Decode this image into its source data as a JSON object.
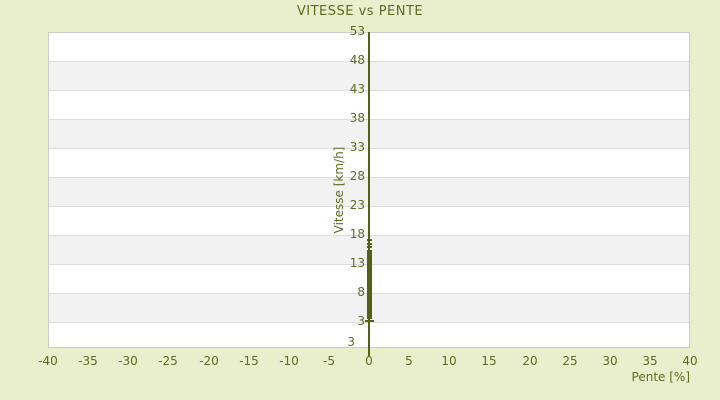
{
  "colors": {
    "background": "#e9eecd",
    "plot_background": "#ffffff",
    "band": "#f2f2f2",
    "gridline": "#dddddd",
    "plot_border": "#cccccc",
    "text": "#5e6a1e",
    "axis_line": "#556013",
    "marker": "#556013"
  },
  "chart_data": {
    "type": "scatter",
    "title": "VITESSE vs PENTE",
    "xlabel": "Pente [%]",
    "ylabel": "Vitesse [km/h]",
    "xlim": [
      -40,
      40
    ],
    "ylim": [
      -1.5,
      53
    ],
    "x_ticks": [
      -40,
      -35,
      -30,
      -25,
      -20,
      -15,
      -10,
      -5,
      0,
      5,
      10,
      15,
      20,
      25,
      30,
      35,
      40
    ],
    "y_ticks": [
      53,
      48,
      43,
      38,
      33,
      28,
      23,
      18,
      13,
      8,
      3
    ],
    "y_axis_bottom_label": "3",
    "y_axis_line_at_x": 0,
    "grid": "horizontal alternating bands (white / light gray), gridline at every y tick",
    "legend": "none",
    "points": [
      [
        0,
        17.1
      ],
      [
        0,
        16.5
      ],
      [
        0,
        15.9
      ],
      [
        0,
        15.3
      ],
      [
        0,
        15.0
      ],
      [
        0,
        14.7
      ],
      [
        0,
        14.4
      ],
      [
        0,
        14.1
      ],
      [
        0,
        13.8
      ],
      [
        0,
        13.5
      ],
      [
        0,
        13.2
      ],
      [
        0,
        12.9
      ],
      [
        0,
        12.6
      ],
      [
        0,
        12.3
      ],
      [
        0,
        12.0
      ],
      [
        0,
        11.7
      ],
      [
        0,
        11.4
      ],
      [
        0,
        11.1
      ],
      [
        0,
        10.8
      ],
      [
        0,
        10.5
      ],
      [
        0,
        10.2
      ],
      [
        0,
        9.9
      ],
      [
        0,
        9.6
      ],
      [
        0,
        9.3
      ],
      [
        0,
        9.0
      ],
      [
        0,
        8.7
      ],
      [
        0,
        8.4
      ],
      [
        0,
        8.1
      ],
      [
        0,
        7.8
      ],
      [
        0,
        7.5
      ],
      [
        0,
        7.2
      ],
      [
        0,
        6.9
      ],
      [
        0,
        6.6
      ],
      [
        0,
        6.3
      ],
      [
        0,
        6.0
      ],
      [
        0,
        5.7
      ],
      [
        0,
        5.4
      ],
      [
        0,
        5.1
      ],
      [
        0,
        4.8
      ],
      [
        0,
        4.5
      ],
      [
        0,
        4.2
      ],
      [
        0,
        3.9
      ],
      [
        0,
        3.7
      ],
      [
        -0.2,
        3.1
      ],
      [
        0,
        3.1
      ],
      [
        0.2,
        3.1
      ]
    ]
  }
}
